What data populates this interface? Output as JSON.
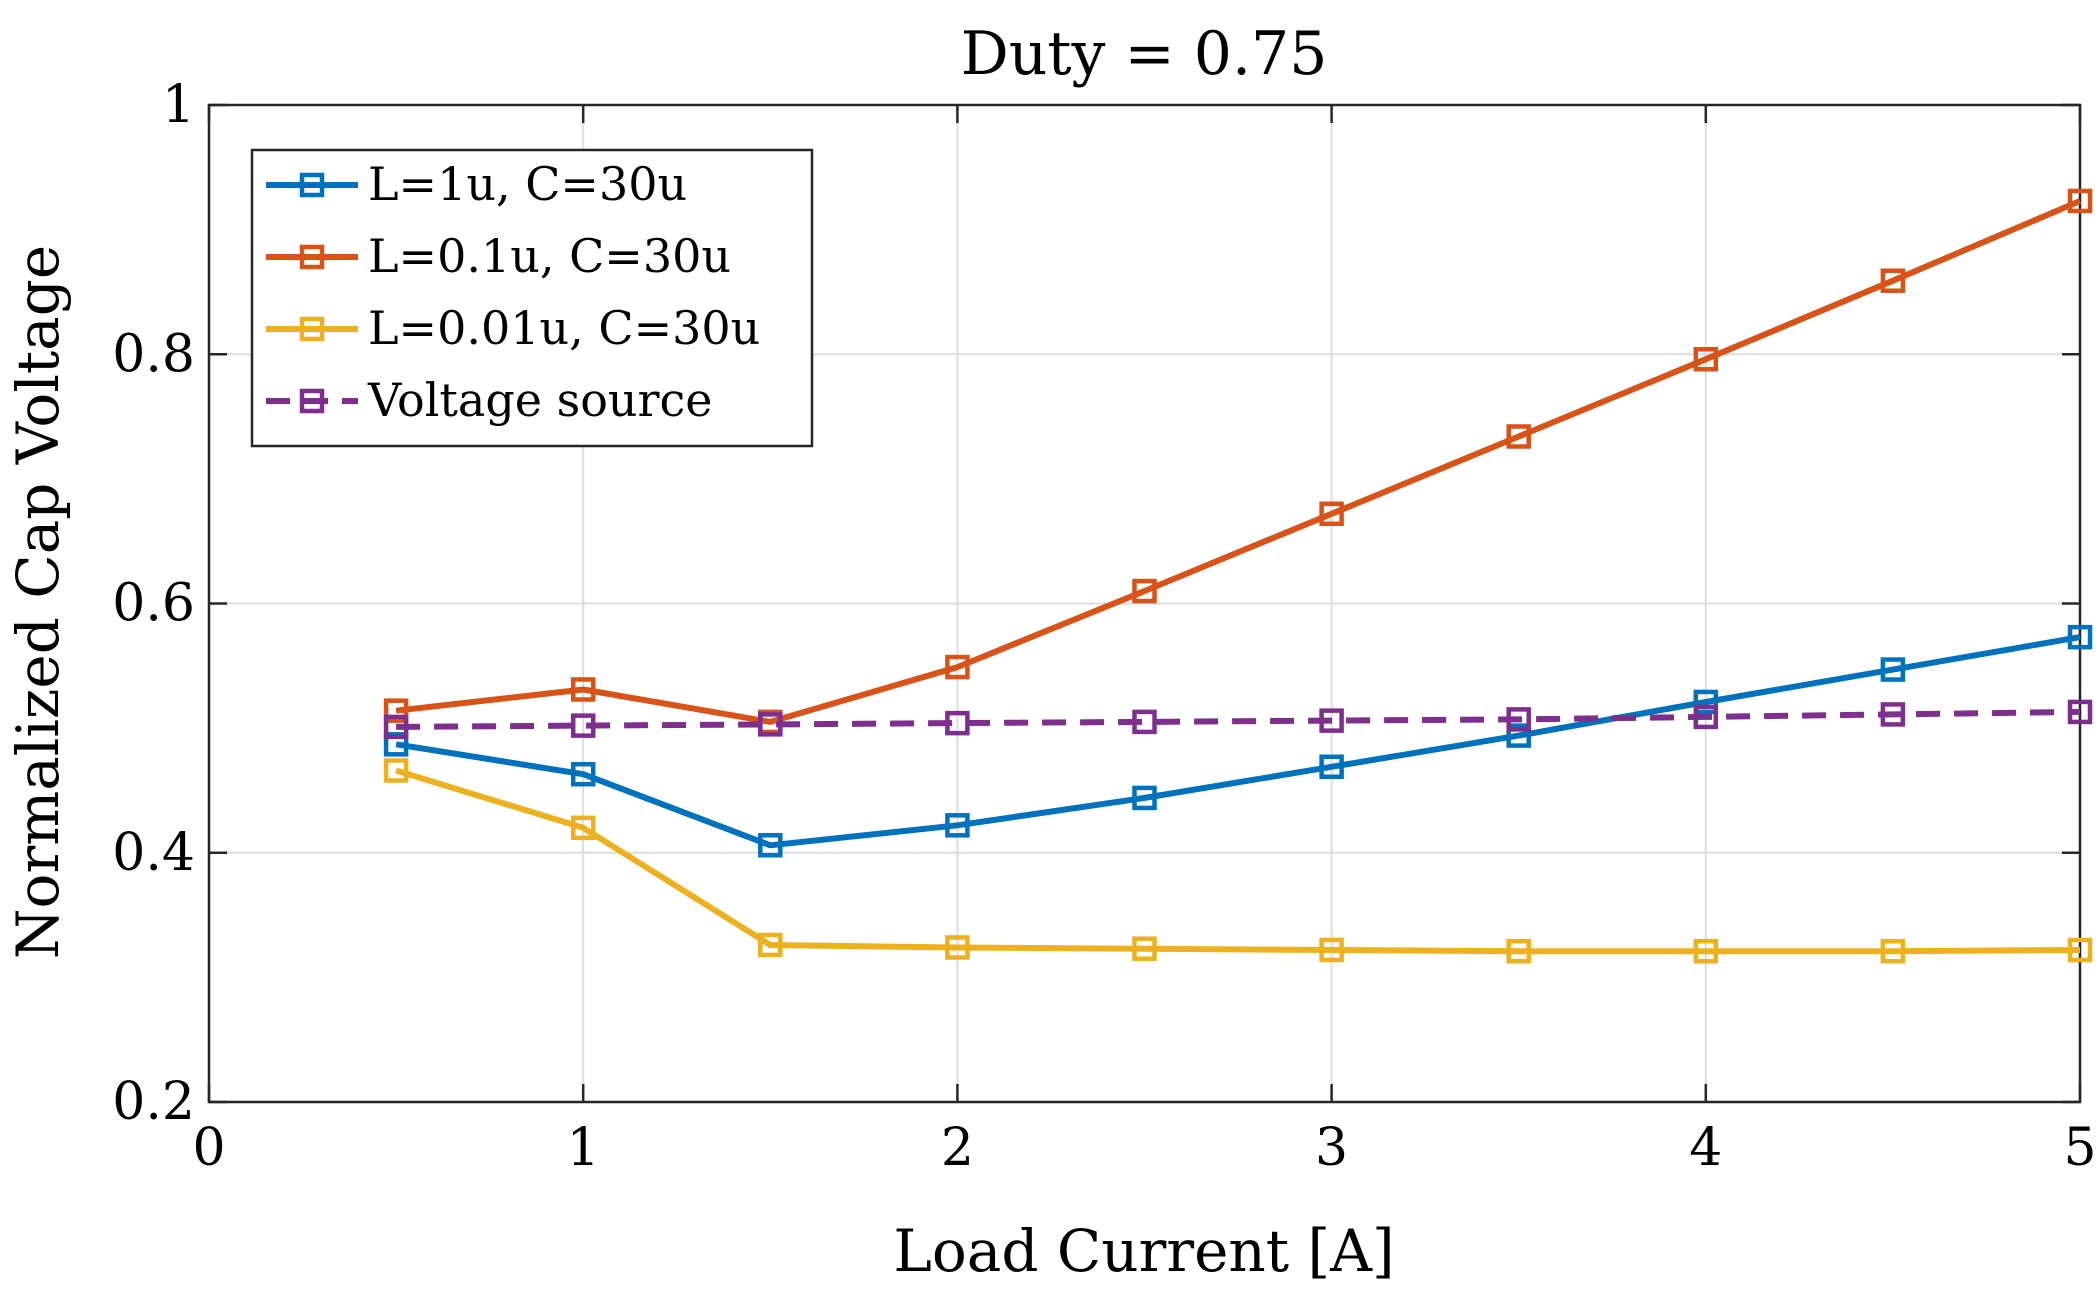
{
  "chart_data": {
    "type": "line",
    "title": "Duty = 0.75",
    "xlabel": "Load Current [A]",
    "ylabel": "Normalized Cap Voltage",
    "xlim": [
      0,
      5
    ],
    "ylim": [
      0.2,
      1.0
    ],
    "xticks": [
      0,
      1,
      2,
      3,
      4,
      5
    ],
    "yticks": [
      0.2,
      0.4,
      0.6,
      0.8,
      1.0
    ],
    "xtick_labels": [
      "0",
      "1",
      "2",
      "3",
      "4",
      "5"
    ],
    "ytick_labels": [
      "0.2",
      "0.4",
      "0.6",
      "0.8",
      "1"
    ],
    "grid": true,
    "legend_position": "top-left",
    "marker": "square",
    "x": [
      0.5,
      1.0,
      1.5,
      2.0,
      2.5,
      3.0,
      3.5,
      4.0,
      4.5,
      5.0
    ],
    "series": [
      {
        "name": "L=1u, C=30u",
        "color": "#0072BD",
        "dashed": false,
        "values": [
          0.487,
          0.463,
          0.406,
          0.422,
          0.444,
          0.469,
          0.494,
          0.521,
          0.547,
          0.573
        ]
      },
      {
        "name": "L=0.1u, C=30u",
        "color": "#D95319",
        "dashed": false,
        "values": [
          0.514,
          0.531,
          0.505,
          0.549,
          0.61,
          0.672,
          0.734,
          0.796,
          0.859,
          0.923
        ]
      },
      {
        "name": "L=0.01u, C=30u",
        "color": "#EDB120",
        "dashed": false,
        "values": [
          0.466,
          0.42,
          0.326,
          0.324,
          0.323,
          0.322,
          0.321,
          0.321,
          0.321,
          0.322
        ]
      },
      {
        "name": "Voltage source",
        "color": "#7E2F8E",
        "dashed": true,
        "values": [
          0.501,
          0.502,
          0.503,
          0.504,
          0.505,
          0.506,
          0.507,
          0.509,
          0.511,
          0.513
        ]
      }
    ]
  }
}
